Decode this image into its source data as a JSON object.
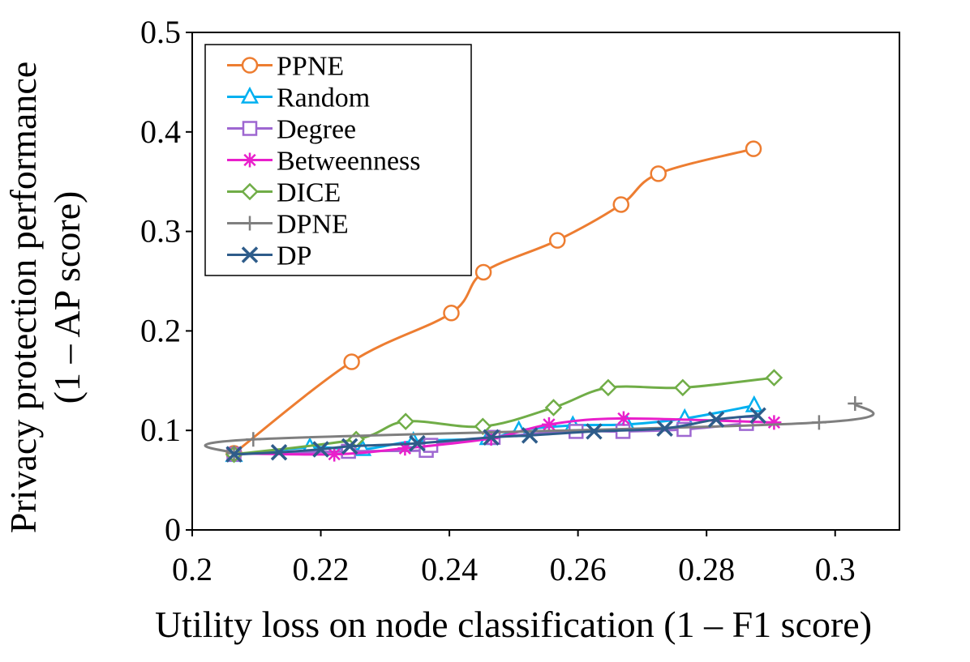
{
  "chart_data": {
    "type": "line",
    "title": "",
    "xlabel": "Utility loss on node classification (1 – F1 score)",
    "ylabel_line1": "Privacy protection performance",
    "ylabel_line2": "(1 – AP score)",
    "xlim": [
      0.2,
      0.31
    ],
    "ylim": [
      0,
      0.5
    ],
    "xticks": [
      0.2,
      0.22,
      0.24,
      0.26,
      0.28,
      0.3
    ],
    "xtick_labels": [
      "0.2",
      "0.22",
      "0.24",
      "0.26",
      "0.28",
      "0.3"
    ],
    "yticks": [
      0,
      0.1,
      0.2,
      0.3,
      0.4,
      0.5
    ],
    "ytick_labels": [
      "0",
      "0.1",
      "0.2",
      "0.3",
      "0.4",
      "0.5"
    ],
    "grid": false,
    "legend_position": "top-left",
    "series": [
      {
        "name": "PPNE",
        "color": "#ED7D31",
        "marker": "circle",
        "x": [
          0.2065,
          0.2248,
          0.2403,
          0.2453,
          0.2568,
          0.2667,
          0.2725,
          0.2873
        ],
        "y": [
          0.077,
          0.169,
          0.218,
          0.259,
          0.291,
          0.327,
          0.358,
          0.383
        ]
      },
      {
        "name": "Random",
        "color": "#00B0F0",
        "marker": "triangle",
        "x": [
          0.2065,
          0.2183,
          0.2265,
          0.2344,
          0.246,
          0.2508,
          0.2592,
          0.2676,
          0.2766,
          0.2874
        ],
        "y": [
          0.075,
          0.083,
          0.081,
          0.089,
          0.092,
          0.1,
          0.105,
          0.106,
          0.112,
          0.125
        ]
      },
      {
        "name": "Degree",
        "color": "#9E67D1",
        "marker": "square",
        "x": [
          0.2065,
          0.2243,
          0.2364,
          0.2371,
          0.2468,
          0.2597,
          0.267,
          0.2765,
          0.2862
        ],
        "y": [
          0.076,
          0.079,
          0.08,
          0.085,
          0.093,
          0.099,
          0.099,
          0.101,
          0.107
        ]
      },
      {
        "name": "Betweenness",
        "color": "#E91FCB",
        "marker": "asterisk",
        "x": [
          0.2065,
          0.2221,
          0.2331,
          0.2465,
          0.2555,
          0.2671,
          0.2905
        ],
        "y": [
          0.077,
          0.076,
          0.082,
          0.092,
          0.106,
          0.112,
          0.108
        ]
      },
      {
        "name": "DICE",
        "color": "#70AD47",
        "marker": "diamond",
        "x": [
          0.2065,
          0.2255,
          0.2332,
          0.2452,
          0.2562,
          0.2647,
          0.2763,
          0.2905
        ],
        "y": [
          0.076,
          0.091,
          0.109,
          0.104,
          0.123,
          0.143,
          0.143,
          0.153
        ]
      },
      {
        "name": "DPNE",
        "color": "#7F7F7F",
        "marker": "plus",
        "x": [
          0.2065,
          0.2095,
          0.2975,
          0.3031
        ],
        "y": [
          0.077,
          0.091,
          0.108,
          0.127
        ]
      },
      {
        "name": "DP",
        "color": "#2E5C8A",
        "marker": "x",
        "x": [
          0.2065,
          0.2135,
          0.22,
          0.2245,
          0.235,
          0.2465,
          0.2525,
          0.2625,
          0.2735,
          0.2815,
          0.288
        ],
        "y": [
          0.076,
          0.078,
          0.081,
          0.084,
          0.087,
          0.093,
          0.095,
          0.099,
          0.102,
          0.111,
          0.115
        ]
      }
    ]
  }
}
